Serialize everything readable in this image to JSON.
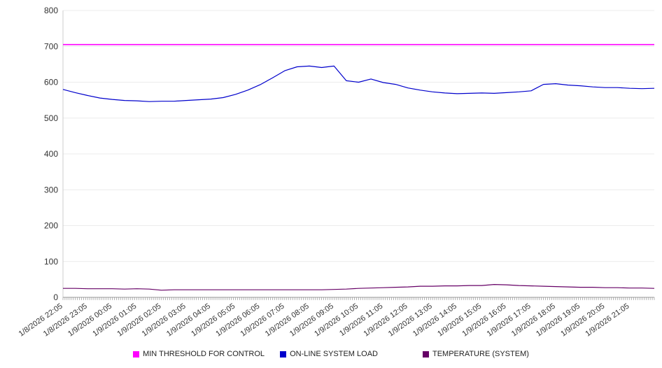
{
  "chart_data": {
    "type": "line",
    "title": "",
    "xlabel": "",
    "ylabel": "",
    "ylim": [
      0,
      800
    ],
    "y_ticks": [
      0,
      100,
      200,
      300,
      400,
      500,
      600,
      700,
      800
    ],
    "grid": "horizontal",
    "legend_position": "bottom",
    "x_start_hours": 0,
    "x_step_hours": 0.5,
    "x_total_hours": 24,
    "categories": [
      "1/8/2026 22:05",
      "1/8/2026 23:05",
      "1/9/2026 00:05",
      "1/9/2026 01:05",
      "1/9/2026 02:05",
      "1/9/2026 03:05",
      "1/9/2026 04:05",
      "1/9/2026 05:05",
      "1/9/2026 06:05",
      "1/9/2026 07:05",
      "1/9/2026 08:05",
      "1/9/2026 09:05",
      "1/9/2026 10:05",
      "1/9/2026 11:05",
      "1/9/2026 12:05",
      "1/9/2026 13:05",
      "1/9/2026 14:05",
      "1/9/2026 15:05",
      "1/9/2026 16:05",
      "1/9/2026 17:05",
      "1/9/2026 18:05",
      "1/9/2026 19:05",
      "1/9/2026 20:05",
      "1/9/2026 21:05"
    ],
    "series": [
      {
        "name": "MIN THRESHOLD FOR CONTROL",
        "color": "#ff00ff",
        "constant_value": 705
      },
      {
        "name": "ON-LINE SYSTEM LOAD",
        "color": "#0000cc",
        "values": [
          580,
          571,
          563,
          556,
          552,
          549,
          548,
          546,
          547,
          547,
          549,
          551,
          553,
          557,
          566,
          578,
          593,
          612,
          632,
          643,
          645,
          641,
          645,
          604,
          600,
          609,
          599,
          594,
          584,
          578,
          573,
          570,
          568,
          569,
          570,
          569,
          571,
          573,
          576,
          594,
          596,
          592,
          590,
          587,
          585,
          585,
          583,
          582,
          583
        ]
      },
      {
        "name": "TEMPERATURE (SYSTEM)",
        "color": "#660066",
        "values": [
          25,
          25,
          24,
          24,
          24,
          23,
          24,
          23,
          20,
          21,
          21,
          21,
          21,
          21,
          21,
          21,
          21,
          21,
          21,
          21,
          21,
          21,
          22,
          23,
          25,
          26,
          27,
          28,
          29,
          31,
          31,
          32,
          32,
          33,
          33,
          36,
          35,
          33,
          32,
          31,
          30,
          29,
          28,
          28,
          27,
          27,
          26,
          26,
          25
        ]
      }
    ],
    "axis": {
      "line_color": "#999999",
      "grid_color": "#ececec",
      "zero_line_color": "#bbbbbb",
      "label_color": "#333333",
      "minor_ticks_per_hour": 12
    }
  }
}
